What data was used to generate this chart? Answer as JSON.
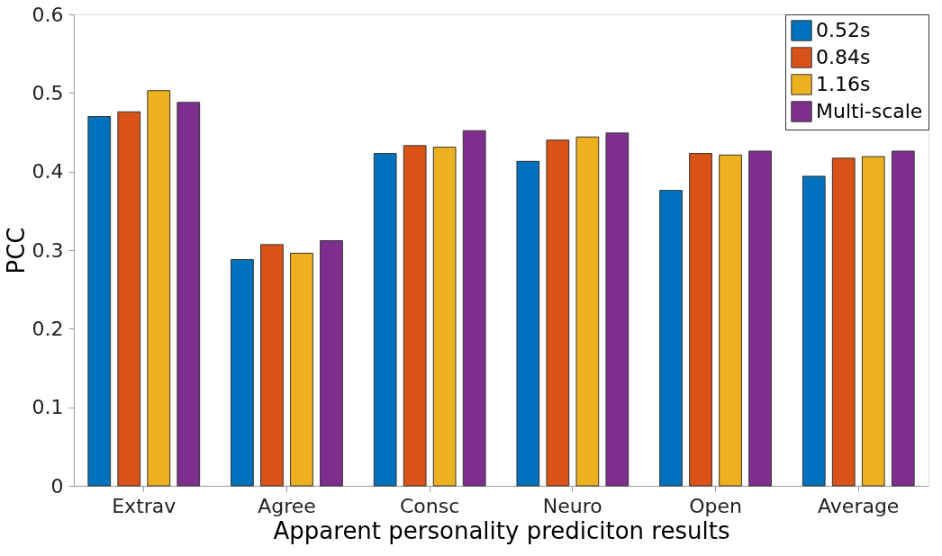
{
  "chart_data": {
    "type": "bar",
    "xlabel": "Apparent personality prediciton results",
    "ylabel": "PCC",
    "categories": [
      "Extrav",
      "Agree",
      "Consc",
      "Neuro",
      "Open",
      "Average"
    ],
    "series": [
      {
        "name": "0.52s",
        "color": "#0072bd",
        "values": [
          0.47,
          0.288,
          0.423,
          0.413,
          0.376,
          0.394
        ]
      },
      {
        "name": "0.84s",
        "color": "#d95319",
        "values": [
          0.476,
          0.307,
          0.433,
          0.44,
          0.423,
          0.417
        ]
      },
      {
        "name": "1.16s",
        "color": "#edb120",
        "values": [
          0.503,
          0.296,
          0.431,
          0.444,
          0.421,
          0.419
        ]
      },
      {
        "name": "Multi-scale",
        "color": "#7e2f8e",
        "values": [
          0.488,
          0.312,
          0.452,
          0.449,
          0.426,
          0.426
        ]
      }
    ],
    "ylim": [
      0,
      0.6
    ],
    "yticks": [
      0,
      0.1,
      0.2,
      0.3,
      0.4,
      0.5,
      0.6
    ],
    "grid": false,
    "legend": "top right"
  }
}
